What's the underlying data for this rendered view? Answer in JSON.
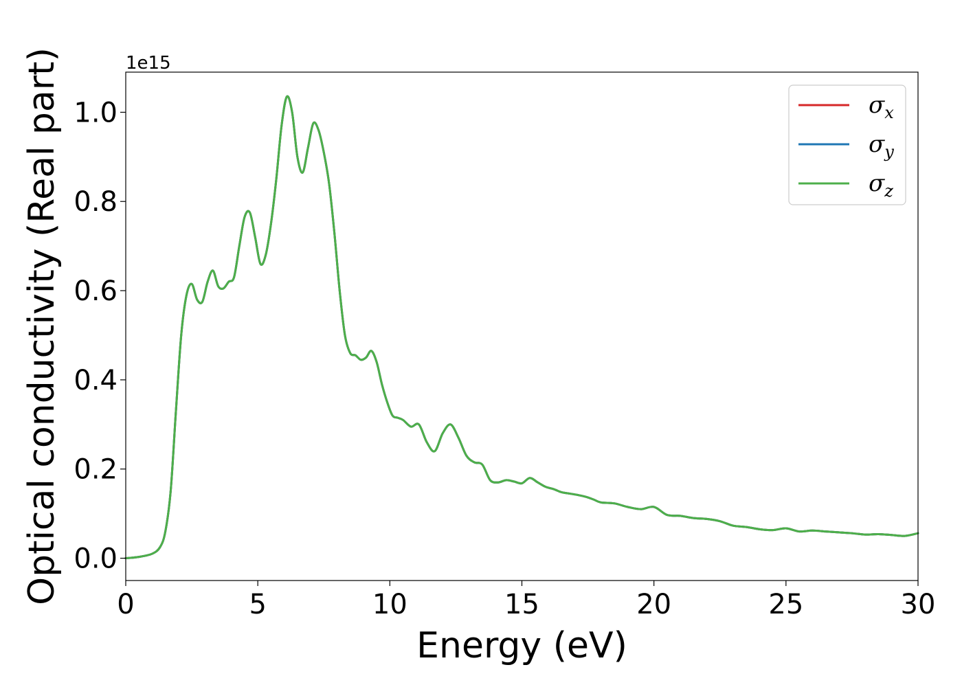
{
  "chart_data": {
    "type": "line",
    "title": "",
    "xlabel": "Energy (eV)",
    "ylabel": "Optical conductivity (Real part)",
    "y_offset_text": "1e15",
    "y_multiplier": 1000000000000000.0,
    "xlim": [
      0,
      30
    ],
    "ylim": [
      -0.05,
      1.09
    ],
    "x_ticks": [
      0,
      5,
      10,
      15,
      20,
      25,
      30
    ],
    "x_tick_labels": [
      "0",
      "5",
      "10",
      "15",
      "20",
      "25",
      "30"
    ],
    "y_ticks": [
      0.0,
      0.2,
      0.4,
      0.6,
      0.8,
      1.0
    ],
    "y_tick_labels": [
      "0.0",
      "0.2",
      "0.4",
      "0.6",
      "0.8",
      "1.0"
    ],
    "grid": false,
    "legend_position": "top-right",
    "series": [
      {
        "name": "σx",
        "symbol": "σ",
        "subscript": "x",
        "color": "#d62728"
      },
      {
        "name": "σy",
        "symbol": "σ",
        "subscript": "y",
        "color": "#1f77b4"
      },
      {
        "name": "σz",
        "symbol": "σ",
        "subscript": "z",
        "color": "#4daf4a"
      }
    ],
    "x": [
      0,
      0.5,
      1.0,
      1.3,
      1.5,
      1.7,
      1.9,
      2.1,
      2.3,
      2.5,
      2.7,
      2.9,
      3.1,
      3.3,
      3.5,
      3.7,
      3.9,
      4.1,
      4.3,
      4.5,
      4.7,
      4.9,
      5.1,
      5.3,
      5.5,
      5.7,
      5.9,
      6.1,
      6.3,
      6.5,
      6.7,
      6.9,
      7.1,
      7.3,
      7.5,
      7.7,
      7.9,
      8.1,
      8.3,
      8.5,
      8.7,
      8.9,
      9.1,
      9.3,
      9.5,
      9.7,
      9.9,
      10.1,
      10.3,
      10.5,
      10.8,
      11.1,
      11.4,
      11.7,
      12.0,
      12.3,
      12.6,
      12.9,
      13.2,
      13.5,
      13.8,
      14.1,
      14.4,
      14.7,
      15.0,
      15.3,
      15.6,
      15.9,
      16.2,
      16.5,
      16.8,
      17.1,
      17.4,
      17.7,
      18.0,
      18.5,
      19.0,
      19.5,
      20.0,
      20.5,
      21.0,
      21.5,
      22.0,
      22.5,
      23.0,
      23.5,
      24.0,
      24.5,
      25.0,
      25.5,
      26.0,
      26.5,
      27.0,
      27.5,
      28.0,
      28.5,
      29.0,
      29.5,
      30.0
    ],
    "y": [
      0.0,
      0.003,
      0.01,
      0.025,
      0.06,
      0.15,
      0.33,
      0.5,
      0.59,
      0.615,
      0.58,
      0.575,
      0.62,
      0.645,
      0.61,
      0.605,
      0.62,
      0.63,
      0.7,
      0.765,
      0.775,
      0.72,
      0.66,
      0.68,
      0.75,
      0.85,
      0.97,
      1.035,
      1.0,
      0.9,
      0.865,
      0.92,
      0.975,
      0.96,
      0.91,
      0.84,
      0.73,
      0.6,
      0.5,
      0.46,
      0.455,
      0.445,
      0.45,
      0.465,
      0.44,
      0.39,
      0.35,
      0.32,
      0.315,
      0.31,
      0.295,
      0.3,
      0.26,
      0.24,
      0.28,
      0.3,
      0.27,
      0.23,
      0.215,
      0.21,
      0.175,
      0.17,
      0.175,
      0.172,
      0.168,
      0.18,
      0.17,
      0.16,
      0.155,
      0.148,
      0.145,
      0.142,
      0.138,
      0.132,
      0.125,
      0.123,
      0.115,
      0.11,
      0.115,
      0.097,
      0.095,
      0.09,
      0.088,
      0.083,
      0.073,
      0.07,
      0.065,
      0.063,
      0.067,
      0.06,
      0.062,
      0.06,
      0.058,
      0.056,
      0.053,
      0.054,
      0.052,
      0.05,
      0.056
    ]
  }
}
